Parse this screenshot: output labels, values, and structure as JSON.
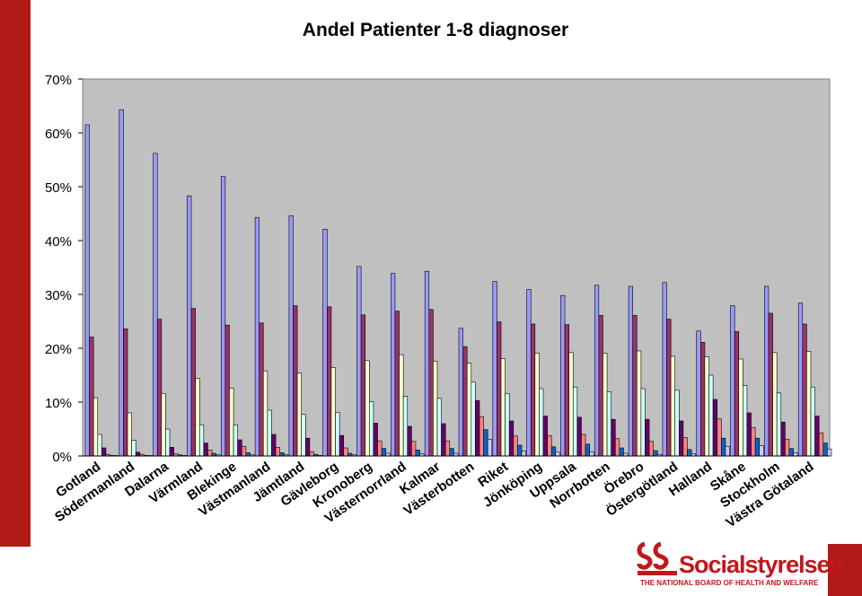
{
  "chart_data": {
    "type": "bar",
    "title": "Andel Patienter 1-8 diagnoser",
    "ylim": [
      0,
      70
    ],
    "yticks": [
      "0%",
      "10%",
      "20%",
      "30%",
      "40%",
      "50%",
      "60%",
      "70%"
    ],
    "ytick_values": [
      0,
      10,
      20,
      30,
      40,
      50,
      60,
      70
    ],
    "grid": false,
    "legend": "none",
    "categories": [
      "Gotland",
      "Södermanland",
      "Dalarna",
      "Värmland",
      "Blekinge",
      "Västmanland",
      "Jämtland",
      "Gävleborg",
      "Kronoberg",
      "Västernorrland",
      "Kalmar",
      "Västerbotten",
      "Riket",
      "Jönköping",
      "Uppsala",
      "Norrbotten",
      "Örebro",
      "Östergötland",
      "Halland",
      "Skåne",
      "Stockholm",
      "Västra Götaland"
    ],
    "series": [
      {
        "color": "#9999ff",
        "values": [
          61.5,
          64.3,
          56.2,
          48.3,
          51.9,
          44.3,
          44.6,
          42.1,
          35.2,
          33.9,
          34.3,
          23.7,
          32.4,
          30.9,
          29.8,
          31.7,
          31.5,
          32.2,
          23.2,
          27.9,
          31.5,
          28.4
        ]
      },
      {
        "color": "#993366",
        "values": [
          22.1,
          23.6,
          25.4,
          27.4,
          24.3,
          24.7,
          27.9,
          27.7,
          26.2,
          26.9,
          27.2,
          20.3,
          24.9,
          24.5,
          24.4,
          26.1,
          26.1,
          25.4,
          21.1,
          23.1,
          26.5,
          24.5
        ]
      },
      {
        "color": "#ffffcc",
        "values": [
          10.8,
          8.0,
          11.6,
          14.4,
          12.6,
          15.8,
          15.4,
          16.4,
          17.7,
          18.8,
          17.6,
          17.2,
          18.1,
          19.1,
          19.2,
          19.1,
          19.5,
          18.5,
          18.4,
          18.0,
          19.2,
          19.4
        ]
      },
      {
        "color": "#ccffff",
        "values": [
          4.0,
          2.9,
          5.0,
          5.8,
          5.8,
          8.5,
          7.7,
          8.1,
          10.1,
          11.1,
          10.7,
          13.7,
          11.6,
          12.5,
          12.8,
          11.9,
          12.5,
          12.2,
          15.0,
          13.1,
          11.7,
          12.8
        ]
      },
      {
        "color": "#660066",
        "values": [
          1.5,
          0.7,
          1.6,
          2.4,
          3.0,
          4.0,
          3.3,
          3.8,
          6.1,
          5.5,
          6.0,
          10.3,
          6.5,
          7.4,
          7.2,
          6.8,
          6.8,
          6.5,
          10.5,
          8.0,
          6.3,
          7.4
        ]
      },
      {
        "color": "#ff8080",
        "values": [
          0.3,
          0.3,
          0.4,
          1.1,
          1.8,
          1.6,
          0.8,
          1.5,
          2.8,
          2.7,
          2.8,
          7.3,
          3.7,
          3.8,
          4.0,
          3.2,
          2.7,
          3.4,
          6.9,
          5.3,
          3.1,
          4.3
        ]
      },
      {
        "color": "#0066cc",
        "values": [
          0.1,
          0.1,
          0.2,
          0.5,
          0.6,
          0.6,
          0.3,
          0.5,
          1.4,
          1.1,
          1.4,
          4.9,
          2.0,
          1.7,
          2.2,
          1.5,
          1.0,
          1.2,
          3.3,
          3.3,
          1.4,
          2.4
        ]
      },
      {
        "color": "#ccccff",
        "values": [
          0.0,
          0.0,
          0.1,
          0.2,
          0.2,
          0.2,
          0.1,
          0.2,
          0.5,
          0.4,
          0.5,
          3.1,
          0.9,
          0.7,
          0.8,
          0.5,
          0.3,
          0.4,
          1.8,
          1.9,
          0.6,
          1.3
        ]
      }
    ]
  },
  "logo": {
    "name": "Socialstyrelsen",
    "subtitle": "THE NATIONAL BOARD OF HEALTH AND WELFARE"
  },
  "colors": {
    "brand_red": "#b11a17",
    "plot_background": "#c0c0c0"
  }
}
